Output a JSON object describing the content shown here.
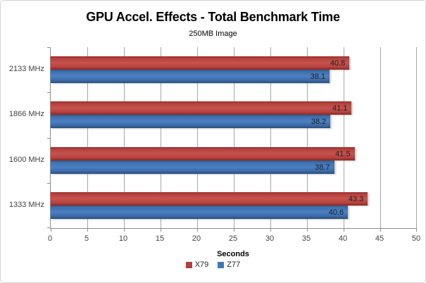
{
  "chart_data": {
    "type": "bar",
    "orientation": "horizontal",
    "title": "GPU Accel. Effects - Total Benchmark Time",
    "subtitle": "250MB Image",
    "categories": [
      "2133 MHz",
      "1866 MHz",
      "1600 MHz",
      "1333 MHz"
    ],
    "series": [
      {
        "name": "X79",
        "color": "#b43e3c",
        "values": [
          40.8,
          41.1,
          41.5,
          43.3
        ]
      },
      {
        "name": "Z77",
        "color": "#4076b8",
        "values": [
          38.1,
          38.2,
          38.7,
          40.6
        ]
      }
    ],
    "xlabel": "Seconds",
    "xlim": [
      0,
      50
    ],
    "x_ticks": [
      0,
      5,
      10,
      15,
      20,
      25,
      30,
      35,
      40,
      45,
      50
    ],
    "grid": "vertical",
    "legend_position": "bottom",
    "value_labels": true,
    "value_label_decimals": 1,
    "colors": {
      "gridline": "#a6a6a6",
      "axis": "#8c8c8c",
      "text": "#404040",
      "border": "#d3d3d3"
    }
  }
}
